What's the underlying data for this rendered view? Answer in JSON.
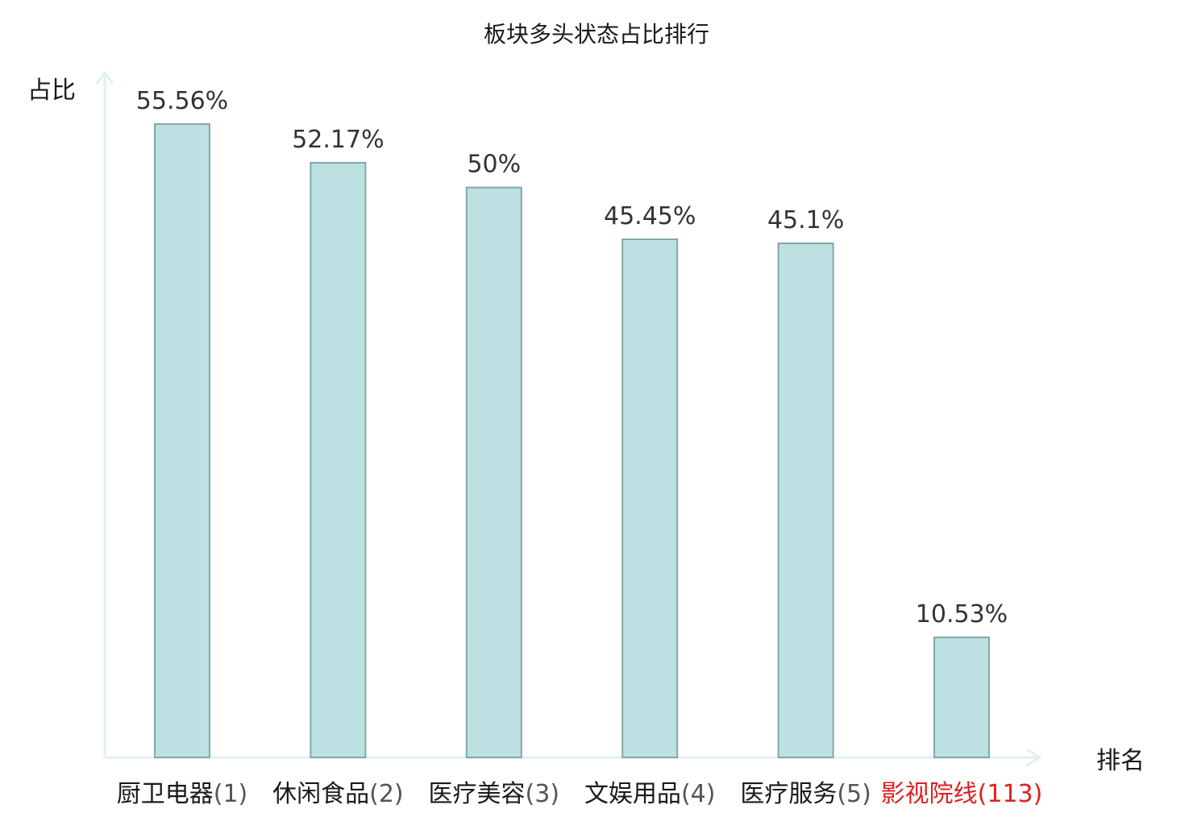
{
  "chart_data": {
    "type": "bar",
    "title": "板块多头状态占比排行",
    "xlabel": "排名",
    "ylabel": "占比",
    "categories": [
      {
        "name": "厨卫电器",
        "rank": "(1)",
        "highlight": false
      },
      {
        "name": "休闲食品",
        "rank": "(2)",
        "highlight": false
      },
      {
        "name": "医疗美容",
        "rank": "(3)",
        "highlight": false
      },
      {
        "name": "文娱用品",
        "rank": "(4)",
        "highlight": false
      },
      {
        "name": "医疗服务",
        "rank": "(5)",
        "highlight": false
      },
      {
        "name": "影视院线",
        "rank": "(113)",
        "highlight": true
      }
    ],
    "values": [
      55.56,
      52.17,
      50,
      45.45,
      45.1,
      10.53
    ],
    "value_labels": [
      "55.56%",
      "52.17%",
      "50%",
      "45.45%",
      "45.1%",
      "10.53%"
    ],
    "ylim": [
      0,
      60
    ],
    "grid": false,
    "legend": "none"
  },
  "colors": {
    "bar_fill": "#bde0e3",
    "bar_stroke": "#84a6aa",
    "axis": "#e0f2f1",
    "label_text": "#1a1a1a",
    "rank_text": "#555555",
    "highlight_text": "#e02020"
  }
}
